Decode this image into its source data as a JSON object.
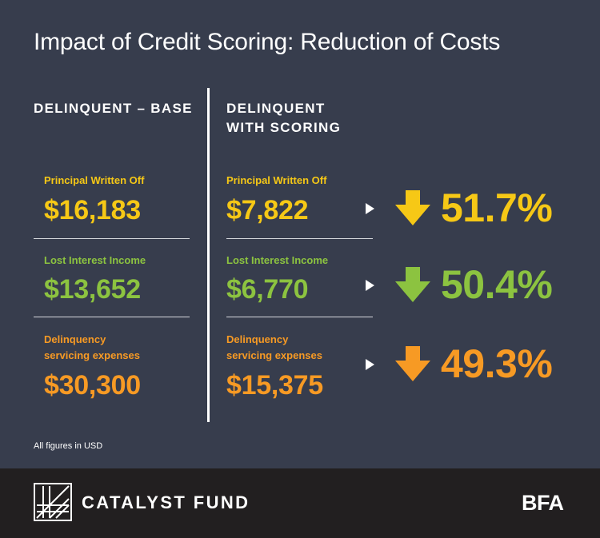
{
  "title": "Impact of Credit Scoring: Reduction of Costs",
  "columns": {
    "base": "DELINQUENT – BASE",
    "scoring_line1": "DELINQUENT",
    "scoring_line2": "WITH SCORING"
  },
  "rows": [
    {
      "label": "Principal Written Off",
      "label_line1": "Principal Written Off",
      "label_line2": "",
      "base_value": "$16,183",
      "scoring_value": "$7,822",
      "reduction": "51.7%",
      "color": "#f6c816"
    },
    {
      "label": "Lost Interest Income",
      "label_line1": "Lost Interest Income",
      "label_line2": "",
      "base_value": "$13,652",
      "scoring_value": "$6,770",
      "reduction": "50.4%",
      "color": "#8cc340"
    },
    {
      "label": "Delinquency servicing expenses",
      "label_line1": "Delinquency",
      "label_line2": "servicing expenses",
      "base_value": "$30,300",
      "scoring_value": "$15,375",
      "reduction": "49.3%",
      "color": "#f79a24"
    }
  ],
  "icons": {
    "reduction_arrow": "arrow-down-icon",
    "pointer": "triangle-right-icon",
    "logo": "catalyst-fund-logo"
  },
  "footnote": "All figures in USD",
  "footer": {
    "brand": "CATALYST FUND",
    "partner": "BFA"
  },
  "colors": {
    "background": "#373d4d",
    "footer_background": "#221f20"
  }
}
